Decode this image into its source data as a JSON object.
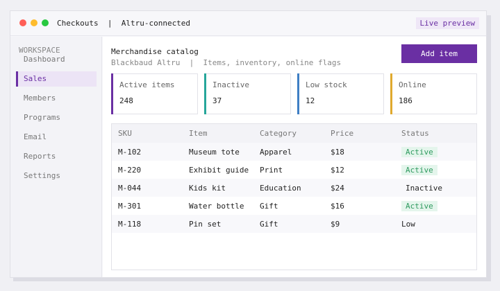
{
  "window": {
    "title": "Checkouts  |  Altru-connected",
    "live_preview": "Live preview"
  },
  "sidebar": {
    "section_label": "WORKSPACE",
    "items": [
      {
        "label": "Dashboard",
        "active": false
      },
      {
        "label": "Sales",
        "active": true
      },
      {
        "label": "Members",
        "active": false
      },
      {
        "label": "Programs",
        "active": false
      },
      {
        "label": "Email",
        "active": false
      },
      {
        "label": "Reports",
        "active": false
      },
      {
        "label": "Settings",
        "active": false
      }
    ]
  },
  "main": {
    "title": "Merchandise catalog",
    "subtitle": "Blackbaud Altru  |  Items, inventory, online flags",
    "add_button": "Add item",
    "cards": [
      {
        "label": "Active items",
        "value": "248",
        "color": "#6a2fa3"
      },
      {
        "label": "Inactive",
        "value": "37",
        "color": "#26a69a"
      },
      {
        "label": "Low stock",
        "value": "12",
        "color": "#3f7fc4"
      },
      {
        "label": "Online",
        "value": "186",
        "color": "#e0a92e"
      }
    ],
    "table": {
      "headers": [
        "SKU",
        "Item",
        "Category",
        "Price",
        "Status"
      ],
      "rows": [
        [
          "M-102",
          "Museum tote",
          "Apparel",
          "$18",
          "Active"
        ],
        [
          "M-220",
          "Exhibit guide",
          "Print",
          "$12",
          "Active"
        ],
        [
          "M-044",
          "Kids kit",
          "Education",
          "$24",
          "Inactive"
        ],
        [
          "M-301",
          "Water bottle",
          "Gift",
          "$16",
          "Active"
        ],
        [
          "M-118",
          "Pin set",
          "Gift",
          "$9",
          "Low"
        ]
      ]
    }
  },
  "colors": {
    "accent": "#6a2fa3",
    "status_active_bg": "#e4f5ec",
    "status_active_fg": "#2e9a5e"
  }
}
